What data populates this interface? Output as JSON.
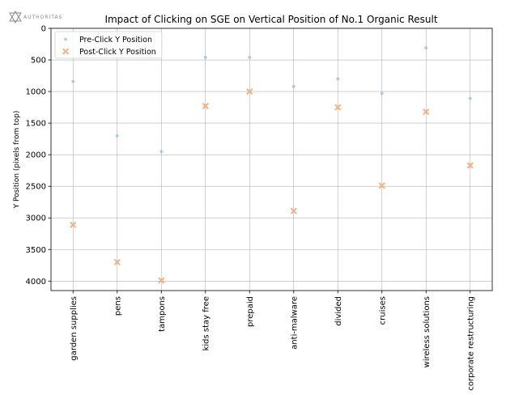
{
  "branding": {
    "logo_text": "AUTHORITAS"
  },
  "colors": {
    "pre": "#9fc5e8",
    "post": "#f6b183",
    "grid": "#b0b0b0",
    "axis": "#000000"
  },
  "chart_data": {
    "type": "scatter",
    "title": "Impact of Clicking on SGE on Vertical Position of No.1 Organic Result",
    "xlabel": "",
    "ylabel": "Y Position (pixels from top)",
    "ylim": [
      0,
      4150
    ],
    "y_inverted": true,
    "yticks": [
      0,
      500,
      1000,
      1500,
      2000,
      2500,
      3000,
      3500,
      4000
    ],
    "grid": true,
    "legend_position": "top-left",
    "categories": [
      "garden supplies",
      "pens",
      "tampons",
      "kids stay free",
      "prepaid",
      "anti-malware",
      "divided",
      "cruises",
      "wireless solutions",
      "corporate restructuring"
    ],
    "series": [
      {
        "name": "Pre-Click Y Position",
        "marker": "dot",
        "values": [
          840,
          1700,
          1950,
          460,
          460,
          920,
          800,
          1030,
          310,
          1110
        ]
      },
      {
        "name": "Post-Click Y Position",
        "marker": "x",
        "values": [
          3110,
          3700,
          3990,
          1230,
          1000,
          2890,
          1250,
          2490,
          1320,
          2170
        ]
      }
    ]
  }
}
